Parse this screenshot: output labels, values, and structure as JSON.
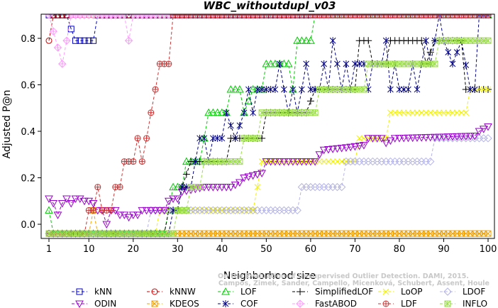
{
  "chart_data": {
    "type": "line",
    "title": "WBC_withoutdupl_v03",
    "xlabel": "Neighborhood size",
    "ylabel": "Adjusted P@n",
    "xlim": [
      1,
      100
    ],
    "ylim": [
      -0.05,
      0.9
    ],
    "x_ticks": [
      1,
      10,
      20,
      30,
      40,
      50,
      60,
      70,
      80,
      90,
      100
    ],
    "y_ticks": [
      0.0,
      0.2,
      0.4,
      0.6,
      0.8
    ],
    "y_tick_labels": [
      "0.0",
      "0.2",
      "0.4",
      "0.6",
      "0.8"
    ],
    "legend_position": "bottom",
    "grid": false,
    "series": [
      {
        "name": "kNN",
        "color": "#0000cc",
        "marker": "square",
        "points": [
          [
            1,
            0.9
          ],
          [
            5,
            0.9
          ],
          [
            6,
            0.84
          ],
          [
            7,
            0.79
          ],
          [
            11,
            0.79
          ],
          [
            12,
            0.9
          ],
          [
            100,
            0.9
          ]
        ]
      },
      {
        "name": "kNNW",
        "color": "#cc0000",
        "marker": "circle",
        "points": [
          [
            1,
            0.79
          ],
          [
            2,
            0.9
          ],
          [
            100,
            0.9
          ]
        ]
      },
      {
        "name": "LOF",
        "color": "#00cc00",
        "marker": "triangle-up",
        "points": [
          [
            1,
            0.06
          ],
          [
            2,
            -0.04
          ],
          [
            27,
            -0.04
          ],
          [
            28,
            0.06
          ],
          [
            29,
            0.16
          ],
          [
            31,
            0.16
          ],
          [
            32,
            0.27
          ],
          [
            35,
            0.27
          ],
          [
            36,
            0.37
          ],
          [
            37,
            0.48
          ],
          [
            41,
            0.48
          ],
          [
            42,
            0.58
          ],
          [
            44,
            0.58
          ],
          [
            45,
            0.48
          ],
          [
            47,
            0.58
          ],
          [
            49,
            0.58
          ],
          [
            50,
            0.69
          ],
          [
            55,
            0.69
          ],
          [
            56,
            0.58
          ],
          [
            57,
            0.79
          ],
          [
            60,
            0.79
          ],
          [
            61,
            0.9
          ],
          [
            100,
            0.9
          ]
        ]
      },
      {
        "name": "SimplifiedLOF",
        "color": "#000000",
        "marker": "plus",
        "points": [
          [
            1,
            -0.04
          ],
          [
            27,
            -0.04
          ],
          [
            28,
            0.06
          ],
          [
            30,
            0.06
          ],
          [
            31,
            0.16
          ],
          [
            33,
            0.27
          ],
          [
            41,
            0.27
          ],
          [
            42,
            0.37
          ],
          [
            49,
            0.37
          ],
          [
            50,
            0.48
          ],
          [
            58,
            0.48
          ],
          [
            59,
            0.48
          ],
          [
            61,
            0.58
          ],
          [
            68,
            0.58
          ],
          [
            70,
            0.58
          ],
          [
            71,
            0.79
          ],
          [
            73,
            0.79
          ],
          [
            74,
            0.69
          ],
          [
            77,
            0.69
          ],
          [
            78,
            0.79
          ],
          [
            83,
            0.79
          ],
          [
            85,
            0.79
          ],
          [
            86,
            0.69
          ],
          [
            88,
            0.79
          ],
          [
            94,
            0.79
          ],
          [
            95,
            0.58
          ],
          [
            96,
            0.58
          ],
          [
            97,
            0.58
          ],
          [
            100,
            0.58
          ]
        ]
      },
      {
        "name": "LoOP",
        "color": "#f0f000",
        "marker": "x",
        "points": [
          [
            1,
            -0.04
          ],
          [
            25,
            -0.04
          ],
          [
            26,
            0.06
          ],
          [
            47,
            0.06
          ],
          [
            48,
            0.16
          ],
          [
            49,
            0.27
          ],
          [
            70,
            0.27
          ],
          [
            71,
            0.37
          ],
          [
            77,
            0.37
          ],
          [
            78,
            0.48
          ],
          [
            95,
            0.48
          ],
          [
            96,
            0.58
          ],
          [
            100,
            0.58
          ]
        ]
      },
      {
        "name": "LDOF",
        "color": "#b4b4e6",
        "marker": "diamond",
        "points": [
          [
            1,
            -0.04
          ],
          [
            23,
            -0.04
          ],
          [
            24,
            0.06
          ],
          [
            57,
            0.06
          ],
          [
            58,
            0.16
          ],
          [
            67,
            0.16
          ],
          [
            68,
            0.27
          ],
          [
            87,
            0.27
          ],
          [
            88,
            0.37
          ],
          [
            100,
            0.37
          ]
        ]
      },
      {
        "name": "ODIN",
        "color": "#9900cc",
        "marker": "triangle-down",
        "points": [
          [
            1,
            0.11
          ],
          [
            2,
            0.09
          ],
          [
            3,
            0.04
          ],
          [
            4,
            0.09
          ],
          [
            5,
            0.11
          ],
          [
            6,
            0.09
          ],
          [
            7,
            0.11
          ],
          [
            8,
            0.11
          ],
          [
            9,
            0.1
          ],
          [
            10,
            0.1
          ],
          [
            11,
            0.09
          ],
          [
            12,
            0.06
          ],
          [
            13,
            0.06
          ],
          [
            14,
            0.0
          ],
          [
            15,
            0.06
          ],
          [
            16,
            0.06
          ],
          [
            17,
            0.04
          ],
          [
            18,
            0.04
          ],
          [
            19,
            0.03
          ],
          [
            20,
            0.04
          ],
          [
            21,
            0.04
          ],
          [
            22,
            0.06
          ],
          [
            26,
            0.06
          ],
          [
            27,
            0.06
          ],
          [
            28,
            0.1
          ],
          [
            29,
            0.11
          ],
          [
            30,
            0.11
          ],
          [
            31,
            0.14
          ],
          [
            36,
            0.16
          ],
          [
            42,
            0.16
          ],
          [
            43,
            0.17
          ],
          [
            44,
            0.18
          ],
          [
            45,
            0.2
          ],
          [
            49,
            0.22
          ],
          [
            50,
            0.27
          ],
          [
            61,
            0.27
          ],
          [
            62,
            0.3
          ],
          [
            63,
            0.32
          ],
          [
            68,
            0.33
          ],
          [
            72,
            0.34
          ],
          [
            73,
            0.37
          ],
          [
            76,
            0.37
          ],
          [
            77,
            0.35
          ],
          [
            78,
            0.36
          ],
          [
            79,
            0.37
          ],
          [
            97,
            0.38
          ],
          [
            98,
            0.4
          ],
          [
            99,
            0.41
          ],
          [
            100,
            0.42
          ]
        ]
      },
      {
        "name": "KDEOS",
        "color": "#f0a000",
        "marker": "square-x",
        "points": [
          [
            1,
            -0.04
          ],
          [
            10,
            -0.04
          ],
          [
            11,
            0.06
          ],
          [
            12,
            -0.04
          ],
          [
            100,
            -0.04
          ]
        ]
      },
      {
        "name": "COF",
        "color": "#000080",
        "marker": "asterisk",
        "points": [
          [
            1,
            -0.04
          ],
          [
            28,
            -0.04
          ],
          [
            29,
            0.06
          ],
          [
            30,
            0.06
          ],
          [
            31,
            0.16
          ],
          [
            33,
            0.16
          ],
          [
            34,
            0.27
          ],
          [
            35,
            0.37
          ],
          [
            36,
            0.37
          ],
          [
            37,
            0.27
          ],
          [
            38,
            0.37
          ],
          [
            40,
            0.37
          ],
          [
            41,
            0.48
          ],
          [
            43,
            0.37
          ],
          [
            45,
            0.48
          ],
          [
            46,
            0.58
          ],
          [
            47,
            0.48
          ],
          [
            48,
            0.58
          ],
          [
            49,
            0.58
          ],
          [
            50,
            0.58
          ],
          [
            51,
            0.58
          ],
          [
            52,
            0.58
          ],
          [
            53,
            0.69
          ],
          [
            54,
            0.58
          ],
          [
            55,
            0.48
          ],
          [
            56,
            0.58
          ],
          [
            57,
            0.48
          ],
          [
            58,
            0.58
          ],
          [
            59,
            0.69
          ],
          [
            60,
            0.58
          ],
          [
            61,
            0.58
          ],
          [
            62,
            0.58
          ],
          [
            63,
            0.69
          ],
          [
            64,
            0.58
          ],
          [
            65,
            0.79
          ],
          [
            66,
            0.69
          ],
          [
            67,
            0.58
          ],
          [
            68,
            0.69
          ],
          [
            69,
            0.58
          ],
          [
            70,
            0.69
          ],
          [
            72,
            0.69
          ],
          [
            73,
            0.58
          ],
          [
            74,
            0.69
          ],
          [
            76,
            0.69
          ],
          [
            77,
            0.79
          ],
          [
            78,
            0.58
          ],
          [
            79,
            0.69
          ],
          [
            80,
            0.58
          ],
          [
            82,
            0.58
          ],
          [
            83,
            0.69
          ],
          [
            84,
            0.58
          ],
          [
            85,
            0.69
          ],
          [
            86,
            0.79
          ],
          [
            87,
            0.69
          ],
          [
            88,
            0.79
          ],
          [
            89,
            0.9
          ],
          [
            90,
            0.79
          ],
          [
            92,
            0.69
          ],
          [
            94,
            0.79
          ],
          [
            96,
            0.58
          ],
          [
            97,
            0.58
          ],
          [
            98,
            0.9
          ],
          [
            100,
            0.9
          ]
        ]
      },
      {
        "name": "FastABOD",
        "color": "#ff9cff",
        "marker": "diamond-plus",
        "points": [
          [
            1,
            0.9
          ],
          [
            4,
            0.69
          ],
          [
            5,
            0.79
          ],
          [
            6,
            0.9
          ],
          [
            18,
            0.9
          ],
          [
            19,
            0.79
          ],
          [
            20,
            0.9
          ],
          [
            100,
            0.9
          ]
        ]
      },
      {
        "name": "LDF",
        "color": "#cc3333",
        "marker": "circle-plus",
        "points": [
          [
            1,
            -0.04
          ],
          [
            9,
            -0.04
          ],
          [
            10,
            0.06
          ],
          [
            11,
            0.06
          ],
          [
            12,
            0.16
          ],
          [
            13,
            0.06
          ],
          [
            14,
            0.06
          ],
          [
            15,
            0.06
          ],
          [
            16,
            0.16
          ],
          [
            17,
            0.16
          ],
          [
            18,
            0.27
          ],
          [
            19,
            0.27
          ],
          [
            20,
            0.27
          ],
          [
            21,
            0.37
          ],
          [
            22,
            0.27
          ],
          [
            23,
            0.37
          ],
          [
            24,
            0.48
          ],
          [
            25,
            0.58
          ],
          [
            26,
            0.69
          ],
          [
            27,
            0.69
          ],
          [
            28,
            0.69
          ],
          [
            29,
            0.9
          ],
          [
            100,
            0.9
          ]
        ]
      },
      {
        "name": "INFLO",
        "color": "#99dd44",
        "marker": "square-asterisk",
        "points": [
          [
            1,
            -0.04
          ],
          [
            29,
            -0.04
          ],
          [
            30,
            0.06
          ],
          [
            32,
            0.06
          ],
          [
            33,
            0.16
          ],
          [
            35,
            0.16
          ],
          [
            36,
            0.27
          ],
          [
            44,
            0.27
          ],
          [
            45,
            0.37
          ],
          [
            48,
            0.37
          ],
          [
            49,
            0.48
          ],
          [
            60,
            0.48
          ],
          [
            61,
            0.48
          ],
          [
            62,
            0.58
          ],
          [
            69,
            0.58
          ],
          [
            71,
            0.58
          ],
          [
            72,
            0.58
          ],
          [
            73,
            0.69
          ],
          [
            86,
            0.69
          ],
          [
            88,
            0.69
          ],
          [
            89,
            0.79
          ],
          [
            93,
            0.79
          ],
          [
            94,
            0.79
          ],
          [
            100,
            0.79
          ]
        ]
      }
    ]
  },
  "credit": {
    "line1": "Campos, Zimek, Sander, Campello, Micenková, Schubert, Assent, Houle",
    "line2": "On the Evaluation of Unsupervised Outlier Detection. DAMI, 2015."
  },
  "legend": {
    "rows": [
      [
        "kNN",
        "kNNW",
        "LOF",
        "SimplifiedLOF",
        "LoOP",
        "LDOF"
      ],
      [
        "ODIN",
        "KDEOS",
        "COF",
        "FastABOD",
        "LDF",
        "INFLO"
      ]
    ]
  }
}
